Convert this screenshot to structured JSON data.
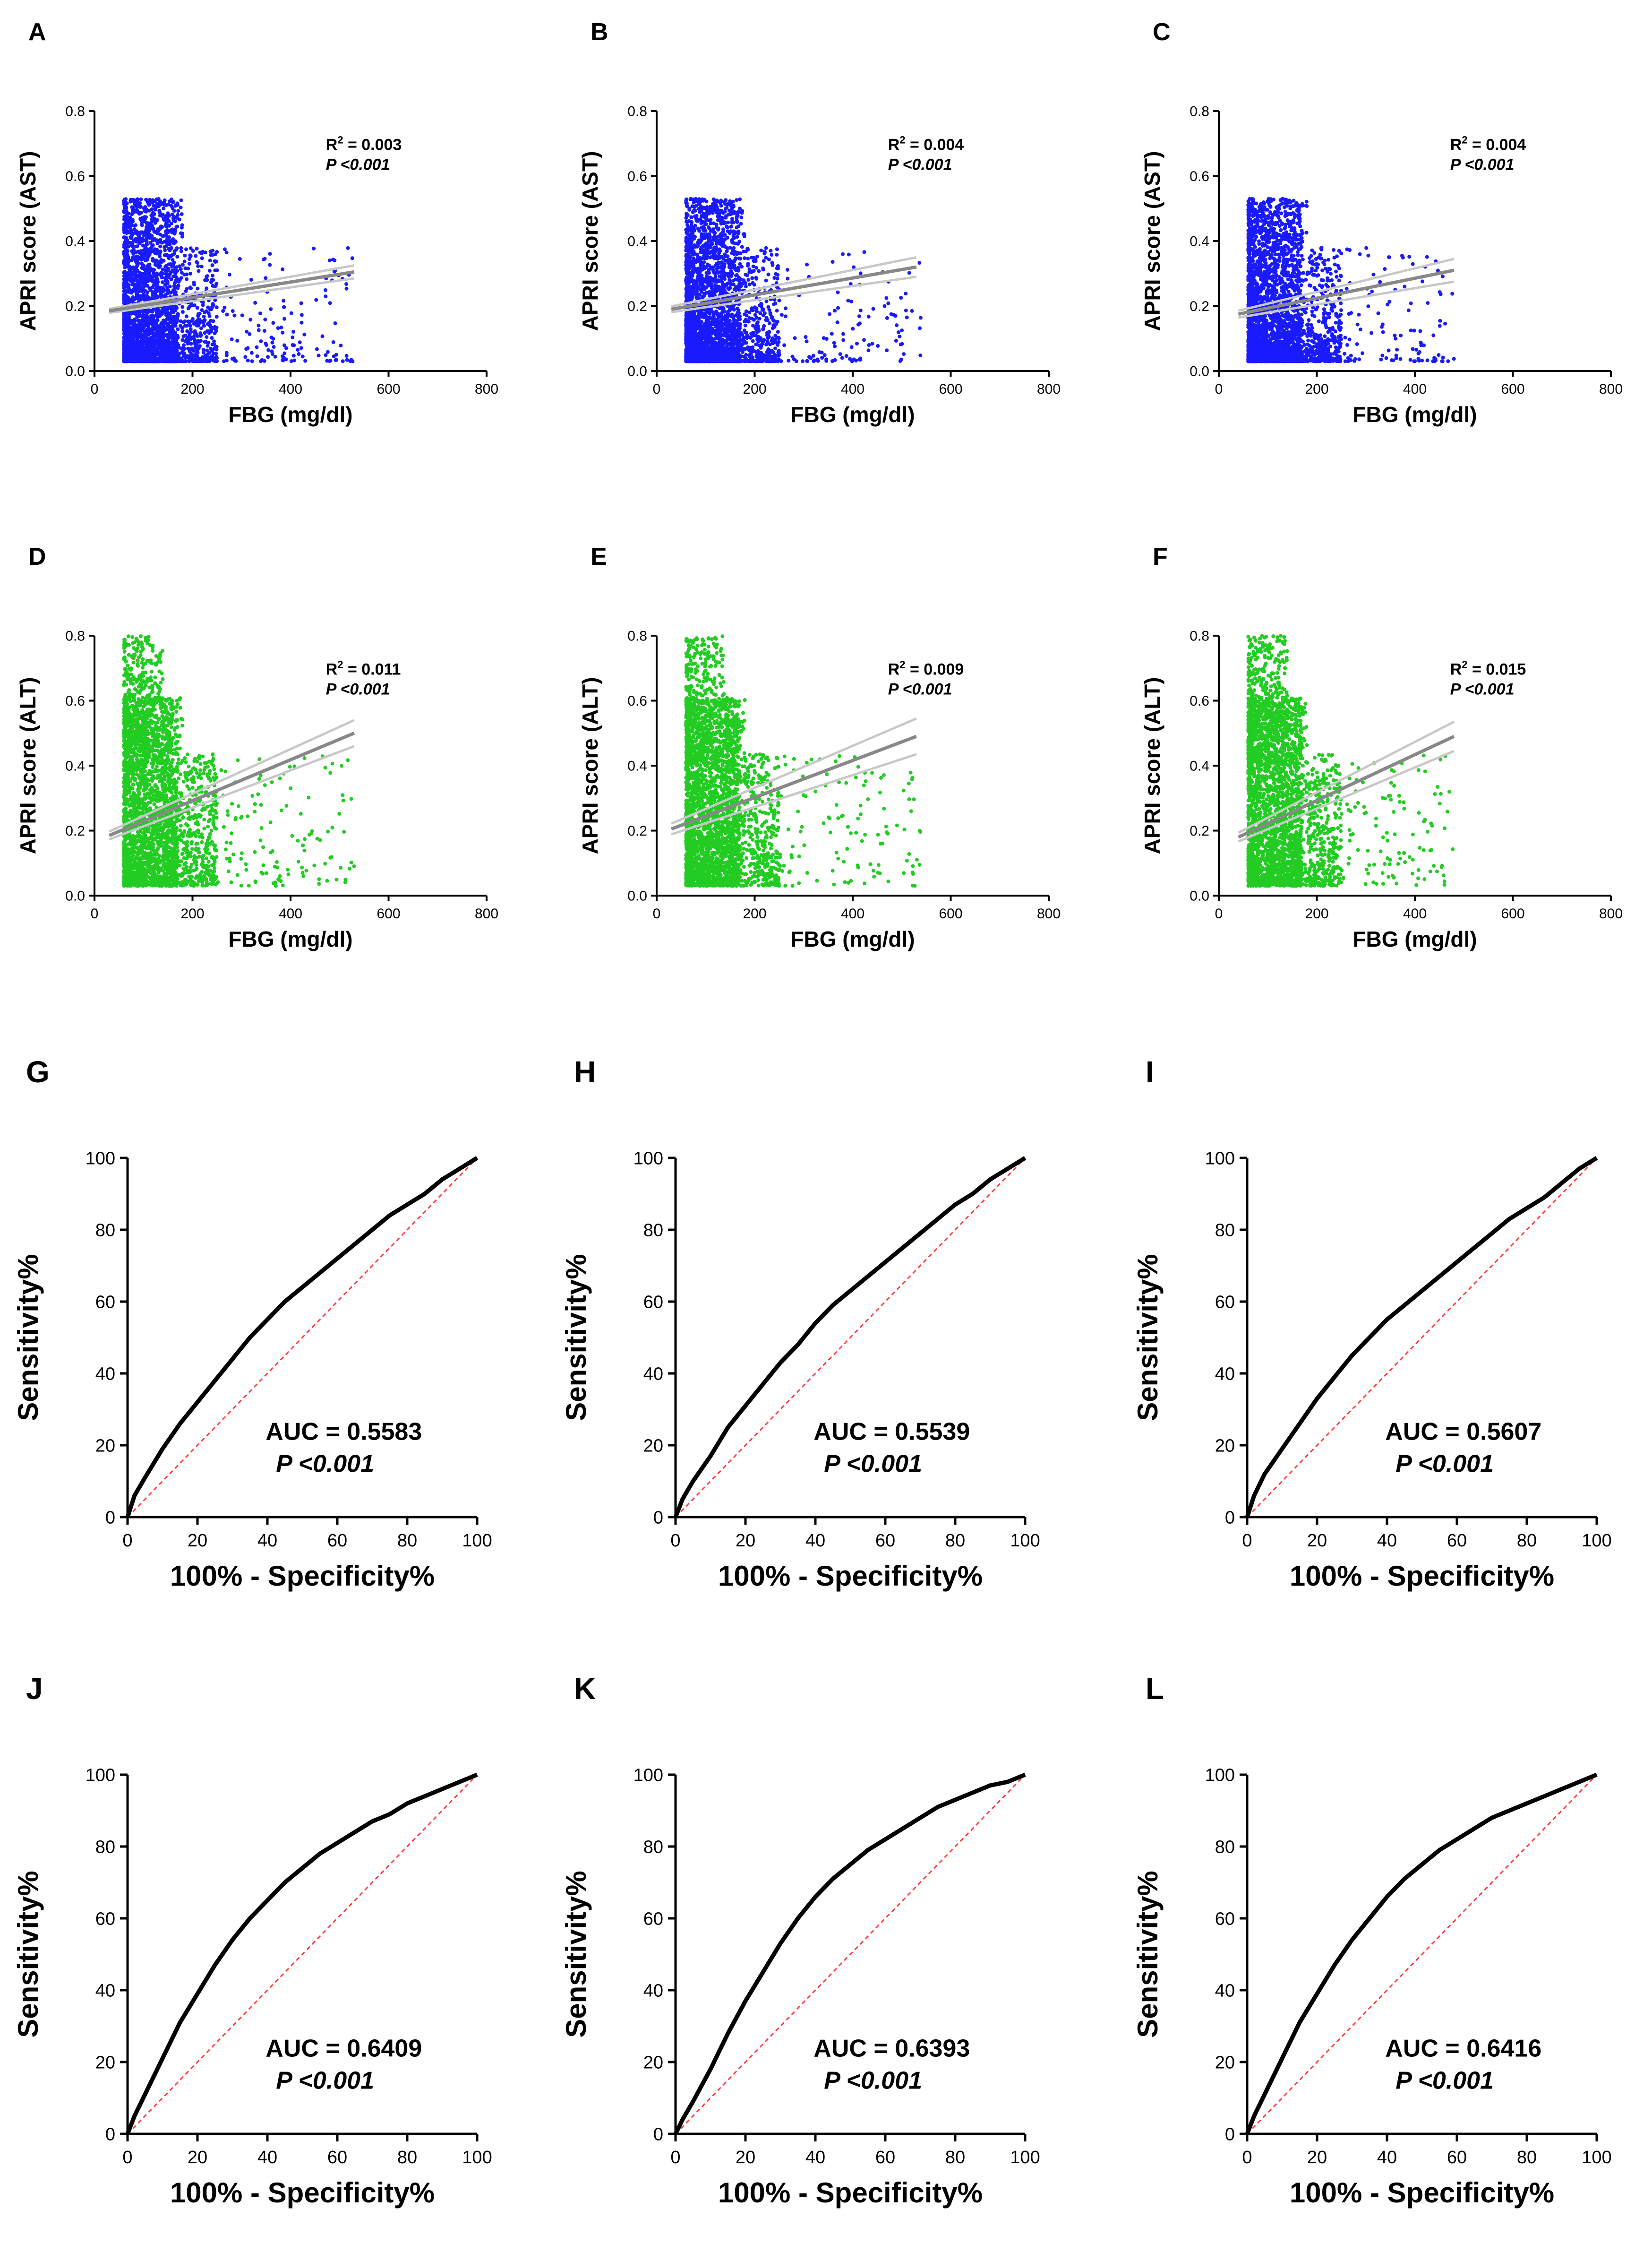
{
  "chart_data": [
    {
      "id": "A",
      "type": "scatter",
      "color": "#1a1aff",
      "xlabel": "FBG (mg/dl)",
      "ylabel": "APRI score (AST)",
      "xlim": [
        0,
        800
      ],
      "ylim": [
        0,
        0.8
      ],
      "xticks": [
        "0",
        "200",
        "400",
        "600",
        "800"
      ],
      "yticks": [
        "0.0",
        "0.2",
        "0.4",
        "0.6",
        "0.8"
      ],
      "fit": {
        "x0": 30,
        "y0": 0.185,
        "x1": 530,
        "y1": 0.305,
        "ci": 0.02
      },
      "xmax": 530,
      "seed": 11,
      "r2_label": "R",
      "r2_sup": "2",
      "r2_value": " = 0.003",
      "p_label": "P <0.001"
    },
    {
      "id": "B",
      "type": "scatter",
      "color": "#1a1aff",
      "xlabel": "FBG (mg/dl)",
      "ylabel": "APRI score (AST)",
      "xlim": [
        0,
        800
      ],
      "ylim": [
        0,
        0.8
      ],
      "xticks": [
        "0",
        "200",
        "400",
        "600",
        "800"
      ],
      "yticks": [
        "0.0",
        "0.2",
        "0.4",
        "0.6",
        "0.8"
      ],
      "fit": {
        "x0": 30,
        "y0": 0.19,
        "x1": 530,
        "y1": 0.32,
        "ci": 0.03
      },
      "xmax": 540,
      "seed": 23,
      "r2_label": "R",
      "r2_sup": "2",
      "r2_value": " = 0.004",
      "p_label": "P <0.001"
    },
    {
      "id": "C",
      "type": "scatter",
      "color": "#1a1aff",
      "xlabel": "FBG (mg/dl)",
      "ylabel": "APRI score (AST)",
      "xlim": [
        0,
        800
      ],
      "ylim": [
        0,
        0.8
      ],
      "xticks": [
        "0",
        "200",
        "400",
        "600",
        "800"
      ],
      "yticks": [
        "0.0",
        "0.2",
        "0.4",
        "0.6",
        "0.8"
      ],
      "fit": {
        "x0": 40,
        "y0": 0.175,
        "x1": 480,
        "y1": 0.31,
        "ci": 0.035
      },
      "xmax": 480,
      "seed": 37,
      "r2_label": "R",
      "r2_sup": "2",
      "r2_value": " = 0.004",
      "p_label": "P <0.001"
    },
    {
      "id": "D",
      "type": "scatter",
      "color": "#22cc22",
      "xlabel": "FBG (mg/dl)",
      "ylabel": "APRI score (ALT)",
      "xlim": [
        0,
        800
      ],
      "ylim": [
        0,
        0.8
      ],
      "xticks": [
        "0",
        "200",
        "400",
        "600",
        "800"
      ],
      "yticks": [
        "0.0",
        "0.2",
        "0.4",
        "0.6",
        "0.8"
      ],
      "fit": {
        "x0": 30,
        "y0": 0.185,
        "x1": 530,
        "y1": 0.5,
        "ci": 0.04
      },
      "xmax": 530,
      "seed": 41,
      "r2_label": "R",
      "r2_sup": "2",
      "r2_value": " = 0.011",
      "p_label": "P <0.001"
    },
    {
      "id": "E",
      "type": "scatter",
      "color": "#22cc22",
      "xlabel": "FBG (mg/dl)",
      "ylabel": "APRI score (ALT)",
      "xlim": [
        0,
        800
      ],
      "ylim": [
        0,
        0.8
      ],
      "xticks": [
        "0",
        "200",
        "400",
        "600",
        "800"
      ],
      "yticks": [
        "0.0",
        "0.2",
        "0.4",
        "0.6",
        "0.8"
      ],
      "fit": {
        "x0": 30,
        "y0": 0.205,
        "x1": 530,
        "y1": 0.49,
        "ci": 0.055
      },
      "xmax": 540,
      "seed": 53,
      "r2_label": "R",
      "r2_sup": "2",
      "r2_value": " = 0.009",
      "p_label": "P <0.001"
    },
    {
      "id": "F",
      "type": "scatter",
      "color": "#22cc22",
      "xlabel": "FBG (mg/dl)",
      "ylabel": "APRI score (ALT)",
      "xlim": [
        0,
        800
      ],
      "ylim": [
        0,
        0.8
      ],
      "xticks": [
        "0",
        "200",
        "400",
        "600",
        "800"
      ],
      "yticks": [
        "0.0",
        "0.2",
        "0.4",
        "0.6",
        "0.8"
      ],
      "fit": {
        "x0": 40,
        "y0": 0.18,
        "x1": 480,
        "y1": 0.49,
        "ci": 0.045
      },
      "xmax": 480,
      "seed": 67,
      "r2_label": "R",
      "r2_sup": "2",
      "r2_value": " = 0.015",
      "p_label": "P <0.001"
    },
    {
      "id": "G",
      "type": "line",
      "xlabel": "100% - Specificity%",
      "ylabel": "Sensitivity%",
      "xlim": [
        0,
        100
      ],
      "ylim": [
        0,
        100
      ],
      "xticks": [
        "0",
        "20",
        "40",
        "60",
        "80",
        "100"
      ],
      "yticks": [
        "0",
        "20",
        "40",
        "60",
        "80",
        "100"
      ],
      "roc": [
        [
          0,
          0
        ],
        [
          2,
          6
        ],
        [
          5,
          11
        ],
        [
          10,
          19
        ],
        [
          15,
          26
        ],
        [
          20,
          32
        ],
        [
          25,
          38
        ],
        [
          30,
          44
        ],
        [
          35,
          50
        ],
        [
          40,
          55
        ],
        [
          45,
          60
        ],
        [
          50,
          64
        ],
        [
          55,
          68
        ],
        [
          60,
          72
        ],
        [
          65,
          76
        ],
        [
          70,
          80
        ],
        [
          75,
          84
        ],
        [
          80,
          87
        ],
        [
          85,
          90
        ],
        [
          90,
          94
        ],
        [
          95,
          97
        ],
        [
          100,
          100
        ]
      ],
      "auc_label": "AUC = 0.5583",
      "p_label": "P <0.001"
    },
    {
      "id": "H",
      "type": "line",
      "xlabel": "100% - Specificity%",
      "ylabel": "Sensitivity%",
      "xlim": [
        0,
        100
      ],
      "ylim": [
        0,
        100
      ],
      "xticks": [
        "0",
        "20",
        "40",
        "60",
        "80",
        "100"
      ],
      "yticks": [
        "0",
        "20",
        "40",
        "60",
        "80",
        "100"
      ],
      "roc": [
        [
          0,
          0
        ],
        [
          2,
          5
        ],
        [
          5,
          10
        ],
        [
          10,
          17
        ],
        [
          15,
          25
        ],
        [
          20,
          31
        ],
        [
          25,
          37
        ],
        [
          30,
          43
        ],
        [
          35,
          48
        ],
        [
          40,
          54
        ],
        [
          45,
          59
        ],
        [
          50,
          63
        ],
        [
          55,
          67
        ],
        [
          60,
          71
        ],
        [
          65,
          75
        ],
        [
          70,
          79
        ],
        [
          75,
          83
        ],
        [
          80,
          87
        ],
        [
          85,
          90
        ],
        [
          90,
          94
        ],
        [
          95,
          97
        ],
        [
          100,
          100
        ]
      ],
      "auc_label": "AUC = 0.5539",
      "p_label": "P <0.001"
    },
    {
      "id": "I",
      "type": "line",
      "xlabel": "100% - Specificity%",
      "ylabel": "Sensitivity%",
      "xlim": [
        0,
        100
      ],
      "ylim": [
        0,
        100
      ],
      "xticks": [
        "0",
        "20",
        "40",
        "60",
        "80",
        "100"
      ],
      "yticks": [
        "0",
        "20",
        "40",
        "60",
        "80",
        "100"
      ],
      "roc": [
        [
          0,
          0
        ],
        [
          2,
          6
        ],
        [
          5,
          12
        ],
        [
          10,
          19
        ],
        [
          15,
          26
        ],
        [
          20,
          33
        ],
        [
          25,
          39
        ],
        [
          30,
          45
        ],
        [
          35,
          50
        ],
        [
          40,
          55
        ],
        [
          45,
          59
        ],
        [
          50,
          63
        ],
        [
          55,
          67
        ],
        [
          60,
          71
        ],
        [
          65,
          75
        ],
        [
          70,
          79
        ],
        [
          75,
          83
        ],
        [
          80,
          86
        ],
        [
          85,
          89
        ],
        [
          90,
          93
        ],
        [
          95,
          97
        ],
        [
          100,
          100
        ]
      ],
      "auc_label": "AUC = 0.5607",
      "p_label": "P <0.001"
    },
    {
      "id": "J",
      "type": "line",
      "xlabel": "100% - Specificity%",
      "ylabel": "Sensitivity%",
      "xlim": [
        0,
        100
      ],
      "ylim": [
        0,
        100
      ],
      "xticks": [
        "0",
        "20",
        "40",
        "60",
        "80",
        "100"
      ],
      "yticks": [
        "0",
        "20",
        "40",
        "60",
        "80",
        "100"
      ],
      "roc": [
        [
          0,
          0
        ],
        [
          2,
          5
        ],
        [
          5,
          11
        ],
        [
          10,
          21
        ],
        [
          15,
          31
        ],
        [
          20,
          39
        ],
        [
          25,
          47
        ],
        [
          30,
          54
        ],
        [
          35,
          60
        ],
        [
          40,
          65
        ],
        [
          45,
          70
        ],
        [
          50,
          74
        ],
        [
          55,
          78
        ],
        [
          60,
          81
        ],
        [
          65,
          84
        ],
        [
          70,
          87
        ],
        [
          75,
          89
        ],
        [
          80,
          92
        ],
        [
          85,
          94
        ],
        [
          90,
          96
        ],
        [
          95,
          98
        ],
        [
          100,
          100
        ]
      ],
      "auc_label": "AUC = 0.6409",
      "p_label": "P <0.001"
    },
    {
      "id": "K",
      "type": "line",
      "xlabel": "100% - Specificity%",
      "ylabel": "Sensitivity%",
      "xlim": [
        0,
        100
      ],
      "ylim": [
        0,
        100
      ],
      "xticks": [
        "0",
        "20",
        "40",
        "60",
        "80",
        "100"
      ],
      "yticks": [
        "0",
        "20",
        "40",
        "60",
        "80",
        "100"
      ],
      "roc": [
        [
          0,
          0
        ],
        [
          2,
          4
        ],
        [
          5,
          9
        ],
        [
          10,
          18
        ],
        [
          15,
          28
        ],
        [
          20,
          37
        ],
        [
          25,
          45
        ],
        [
          30,
          53
        ],
        [
          35,
          60
        ],
        [
          40,
          66
        ],
        [
          45,
          71
        ],
        [
          50,
          75
        ],
        [
          55,
          79
        ],
        [
          60,
          82
        ],
        [
          65,
          85
        ],
        [
          70,
          88
        ],
        [
          75,
          91
        ],
        [
          80,
          93
        ],
        [
          85,
          95
        ],
        [
          90,
          97
        ],
        [
          95,
          98
        ],
        [
          100,
          100
        ]
      ],
      "auc_label": "AUC = 0.6393",
      "p_label": "P <0.001"
    },
    {
      "id": "L",
      "type": "line",
      "xlabel": "100% - Specificity%",
      "ylabel": "Sensitivity%",
      "xlim": [
        0,
        100
      ],
      "ylim": [
        0,
        100
      ],
      "xticks": [
        "0",
        "20",
        "40",
        "60",
        "80",
        "100"
      ],
      "yticks": [
        "0",
        "20",
        "40",
        "60",
        "80",
        "100"
      ],
      "roc": [
        [
          0,
          0
        ],
        [
          2,
          5
        ],
        [
          5,
          11
        ],
        [
          10,
          21
        ],
        [
          15,
          31
        ],
        [
          20,
          39
        ],
        [
          25,
          47
        ],
        [
          30,
          54
        ],
        [
          35,
          60
        ],
        [
          40,
          66
        ],
        [
          45,
          71
        ],
        [
          50,
          75
        ],
        [
          55,
          79
        ],
        [
          60,
          82
        ],
        [
          65,
          85
        ],
        [
          70,
          88
        ],
        [
          75,
          90
        ],
        [
          80,
          92
        ],
        [
          85,
          94
        ],
        [
          90,
          96
        ],
        [
          95,
          98
        ],
        [
          100,
          100
        ]
      ],
      "auc_label": "AUC = 0.6416",
      "p_label": "P <0.001"
    }
  ]
}
